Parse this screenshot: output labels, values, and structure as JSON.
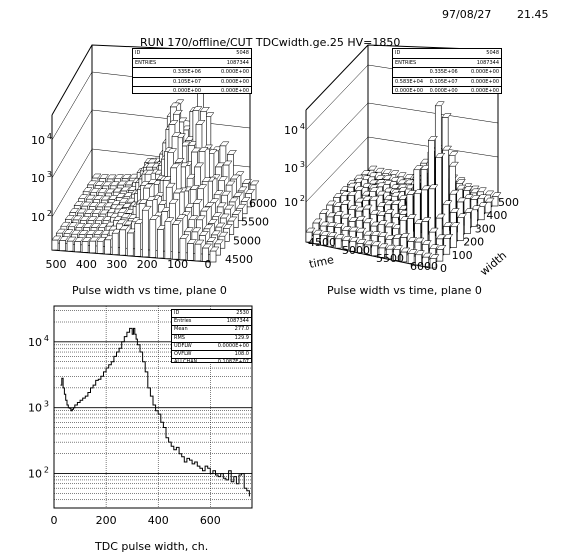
{
  "header": {
    "date": "97/08/27",
    "time": "21.45",
    "title": "RUN 170/offline/CUT TDCwidth.ge.25   HV=1850"
  },
  "panels": {
    "top_left": {
      "caption": "Pulse width vs time, plane 0",
      "stats": [
        [
          "ID",
          "",
          "5048"
        ],
        [
          "ENTRIES",
          "",
          "1087344"
        ],
        [
          "",
          "0.335E+06",
          "0.000E+00"
        ],
        [
          "",
          "0.105E+07",
          "0.000E+00"
        ],
        [
          "",
          "0.000E+00",
          "0.000E+00"
        ]
      ]
    },
    "top_right": {
      "caption": "Pulse width vs time, plane 0",
      "stats": [
        [
          "ID",
          "",
          "5048"
        ],
        [
          "ENTRIES",
          "",
          "1087344"
        ],
        [
          "",
          "0.335E+06",
          "0.000E+00"
        ],
        [
          "0.583E+04",
          "0.105E+07",
          "0.000E+00"
        ],
        [
          "0.000E+00",
          "0.000E+00",
          "0.000E+00"
        ]
      ]
    },
    "bottom": {
      "caption": "TDC pulse width, ch.",
      "stats": [
        [
          "ID",
          "2530"
        ],
        [
          "Entries",
          "1087344"
        ],
        [
          "Mean",
          "277.0"
        ],
        [
          "RMS",
          "129.9"
        ],
        [
          "UDFLW",
          "0.0000E+00"
        ],
        [
          "OVFLW",
          "108.0"
        ],
        [
          "ALLCHAN",
          "0.1087E+07"
        ]
      ]
    }
  },
  "chart_data": [
    {
      "type": "lego3d",
      "name": "top_left",
      "x_ticks": [
        "500",
        "400",
        "300",
        "200",
        "100",
        "0"
      ],
      "y_ticks": [
        "4500",
        "5000",
        "5500",
        "6000"
      ],
      "z_ticks": [
        "10^2",
        "10^3",
        "10^4"
      ],
      "zscale": "log"
    },
    {
      "type": "lego3d",
      "name": "top_right",
      "x_ticks": [
        "4500",
        "5000",
        "5500",
        "6000"
      ],
      "y_ticks": [
        "0",
        "100",
        "200",
        "300",
        "400",
        "500"
      ],
      "z_ticks": [
        "10^2",
        "10^3",
        "10^4"
      ],
      "xlabel": "time",
      "ylabel": "width",
      "zscale": "log"
    },
    {
      "type": "line",
      "name": "bottom",
      "xlabel": "TDC pulse width, ch.",
      "x_ticks": [
        "0",
        "200",
        "400",
        "600"
      ],
      "y_ticks": [
        "10^2",
        "10^3",
        "10^4"
      ],
      "xlim": [
        0,
        760
      ],
      "ylim": [
        30,
        35000
      ],
      "yscale": "log",
      "grid": true,
      "series": [
        {
          "x": [
            25,
            30,
            35,
            40,
            45,
            50,
            55,
            60,
            65,
            70,
            75,
            80,
            90,
            100,
            110,
            120,
            130,
            140,
            150,
            160,
            170,
            180,
            190,
            200,
            210,
            220,
            230,
            240,
            250,
            260,
            270,
            280,
            290,
            300,
            305,
            310,
            315,
            320,
            330,
            340,
            350,
            360,
            370,
            380,
            390,
            400,
            410,
            420,
            430,
            440,
            450,
            460,
            470,
            480,
            490,
            500,
            510,
            520,
            530,
            540,
            550,
            560,
            570,
            580,
            590,
            600,
            610,
            620,
            630,
            640,
            650,
            660,
            670,
            680,
            690,
            700,
            710,
            720,
            730,
            740,
            750
          ],
          "y": [
            2200,
            2800,
            2000,
            1600,
            1300,
            1100,
            1000,
            980,
            900,
            950,
            1000,
            1100,
            1200,
            1300,
            1400,
            1500,
            1700,
            2000,
            2200,
            2600,
            2700,
            3000,
            3500,
            4000,
            4500,
            5000,
            6000,
            7000,
            8000,
            10000,
            12000,
            14000,
            16000,
            13000,
            16000,
            13000,
            11000,
            9000,
            7000,
            5000,
            3500,
            2000,
            1500,
            1100,
            900,
            800,
            600,
            500,
            350,
            300,
            260,
            230,
            250,
            200,
            180,
            150,
            170,
            160,
            140,
            150,
            130,
            120,
            110,
            130,
            120,
            100,
            110,
            95,
            90,
            100,
            85,
            80,
            110,
            75,
            90,
            70,
            95,
            100,
            60,
            55,
            45
          ]
        }
      ]
    }
  ]
}
